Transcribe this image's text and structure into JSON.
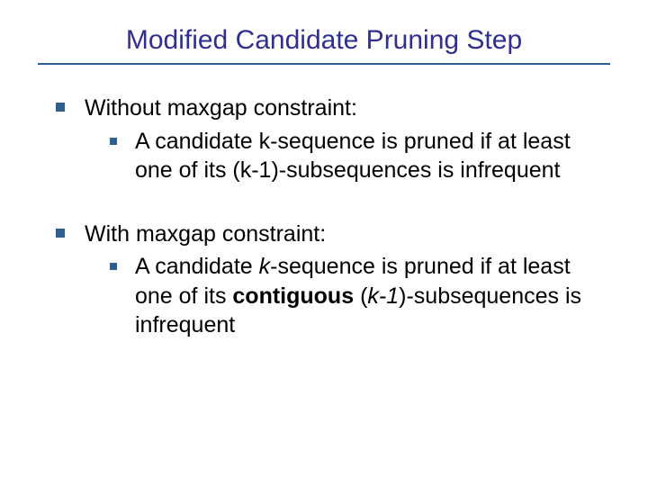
{
  "title": "Modified Candidate Pruning Step",
  "colors": {
    "title_color": "#2f2f8f",
    "underline_color": "#2f5f8f",
    "bullet_color": "#2f5f8f",
    "text_color": "#000000",
    "background": "#ffffff"
  },
  "typography": {
    "title_fontsize": 30,
    "body_fontsize": 25,
    "title_font": "Arial",
    "body_font": "Verdana"
  },
  "items": [
    {
      "heading": "Without maxgap constraint:",
      "sub_html": "A candidate k-sequence is pruned if at least one of its (k-1)-subsequences is infrequent"
    },
    {
      "heading": "With maxgap constraint:",
      "sub_html": "A candidate <span class=\"italic\">k</span>-sequence is pruned if at least one of its <span class=\"bold\">contiguous</span> (<span class=\"italic\">k-1</span>)-subsequences is infrequent"
    }
  ]
}
